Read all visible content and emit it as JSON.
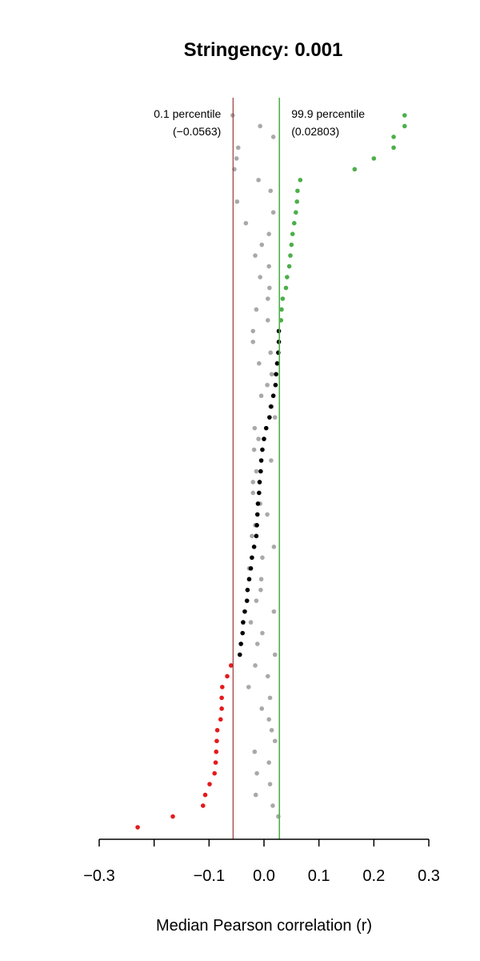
{
  "chart_data": {
    "type": "scatter",
    "title": "Stringency: 0.001",
    "xlabel": "Median Pearson correlation (r)",
    "xlim": [
      -0.3,
      0.3
    ],
    "ylim": [
      0,
      69
    ],
    "x_ticks": [
      -0.3,
      -0.2,
      -0.1,
      0.0,
      0.1,
      0.2,
      0.3
    ],
    "x_tick_labels": [
      "−0.3",
      "",
      "−0.1",
      "0.0",
      "0.1",
      "0.2",
      "0.3"
    ],
    "colors": {
      "high": "#4daf4a",
      "low": "#e41a1c",
      "middle": "#000000",
      "null": "#a9a9a9",
      "low_line": "#9b3b3b",
      "high_line": "#4daf4a"
    },
    "thresholds": {
      "low": {
        "label": "0.1 percentile",
        "value_label": "(−0.0563)",
        "value": -0.0563
      },
      "high": {
        "label": "99.9 percentile",
        "value_label": "(0.02803)",
        "value": 0.02803
      }
    },
    "series": [
      {
        "key": "null",
        "values": [
          {
            "x": -0.057,
            "y": 68
          },
          {
            "x": -0.007,
            "y": 67
          },
          {
            "x": 0.017,
            "y": 66
          },
          {
            "x": -0.047,
            "y": 65
          },
          {
            "x": -0.05,
            "y": 64
          },
          {
            "x": -0.054,
            "y": 63
          },
          {
            "x": -0.01,
            "y": 62
          },
          {
            "x": 0.012,
            "y": 61
          },
          {
            "x": -0.049,
            "y": 60
          },
          {
            "x": 0.017,
            "y": 59
          },
          {
            "x": -0.033,
            "y": 58
          },
          {
            "x": 0.009,
            "y": 57
          },
          {
            "x": -0.004,
            "y": 56
          },
          {
            "x": -0.016,
            "y": 55
          },
          {
            "x": 0.009,
            "y": 54
          },
          {
            "x": -0.007,
            "y": 53
          },
          {
            "x": 0.01,
            "y": 52
          },
          {
            "x": 0.007,
            "y": 51
          },
          {
            "x": -0.014,
            "y": 50
          },
          {
            "x": 0.007,
            "y": 49
          },
          {
            "x": -0.02,
            "y": 48
          },
          {
            "x": -0.02,
            "y": 47
          },
          {
            "x": 0.012,
            "y": 46
          },
          {
            "x": -0.009,
            "y": 45
          },
          {
            "x": 0.014,
            "y": 44
          },
          {
            "x": 0.006,
            "y": 43
          },
          {
            "x": -0.005,
            "y": 42
          },
          {
            "x": 0.012,
            "y": 41
          },
          {
            "x": 0.02,
            "y": 40
          },
          {
            "x": -0.017,
            "y": 39
          },
          {
            "x": -0.01,
            "y": 38
          },
          {
            "x": -0.018,
            "y": 37
          },
          {
            "x": 0.013,
            "y": 36
          },
          {
            "x": -0.014,
            "y": 35
          },
          {
            "x": -0.02,
            "y": 34
          },
          {
            "x": -0.02,
            "y": 33
          },
          {
            "x": -0.007,
            "y": 32
          },
          {
            "x": 0.006,
            "y": 31
          },
          {
            "x": -0.016,
            "y": 30
          },
          {
            "x": -0.022,
            "y": 29
          },
          {
            "x": 0.018,
            "y": 28
          },
          {
            "x": -0.003,
            "y": 27
          },
          {
            "x": -0.027,
            "y": 26
          },
          {
            "x": -0.005,
            "y": 25
          },
          {
            "x": -0.006,
            "y": 24
          },
          {
            "x": -0.014,
            "y": 23
          },
          {
            "x": 0.018,
            "y": 22
          },
          {
            "x": -0.024,
            "y": 21
          },
          {
            "x": -0.003,
            "y": 20
          },
          {
            "x": -0.012,
            "y": 19
          },
          {
            "x": 0.02,
            "y": 18
          },
          {
            "x": -0.016,
            "y": 17
          },
          {
            "x": 0.007,
            "y": 16
          },
          {
            "x": -0.028,
            "y": 15
          },
          {
            "x": 0.011,
            "y": 14
          },
          {
            "x": -0.004,
            "y": 13
          },
          {
            "x": 0.009,
            "y": 12
          },
          {
            "x": 0.014,
            "y": 11
          },
          {
            "x": 0.02,
            "y": 10
          },
          {
            "x": -0.017,
            "y": 9
          },
          {
            "x": 0.009,
            "y": 8
          },
          {
            "x": -0.013,
            "y": 7
          },
          {
            "x": 0.011,
            "y": 6
          },
          {
            "x": -0.015,
            "y": 5
          },
          {
            "x": 0.016,
            "y": 4
          },
          {
            "x": 0.026,
            "y": 3
          }
        ]
      },
      {
        "key": "high",
        "values": [
          {
            "x": 0.256,
            "y": 68
          },
          {
            "x": 0.256,
            "y": 67
          },
          {
            "x": 0.236,
            "y": 66
          },
          {
            "x": 0.236,
            "y": 65
          },
          {
            "x": 0.2,
            "y": 64
          },
          {
            "x": 0.165,
            "y": 63
          },
          {
            "x": 0.066,
            "y": 62
          },
          {
            "x": 0.061,
            "y": 61
          },
          {
            "x": 0.06,
            "y": 60
          },
          {
            "x": 0.058,
            "y": 59
          },
          {
            "x": 0.055,
            "y": 58
          },
          {
            "x": 0.052,
            "y": 57
          },
          {
            "x": 0.05,
            "y": 56
          },
          {
            "x": 0.048,
            "y": 55
          },
          {
            "x": 0.046,
            "y": 54
          },
          {
            "x": 0.042,
            "y": 53
          },
          {
            "x": 0.04,
            "y": 52
          },
          {
            "x": 0.034,
            "y": 51
          },
          {
            "x": 0.032,
            "y": 50
          },
          {
            "x": 0.031,
            "y": 49
          }
        ]
      },
      {
        "key": "middle",
        "values": [
          {
            "x": 0.027,
            "y": 48
          },
          {
            "x": 0.027,
            "y": 47
          },
          {
            "x": 0.026,
            "y": 46
          },
          {
            "x": 0.024,
            "y": 45
          },
          {
            "x": 0.022,
            "y": 44
          },
          {
            "x": 0.021,
            "y": 43
          },
          {
            "x": 0.017,
            "y": 42
          },
          {
            "x": 0.013,
            "y": 41
          },
          {
            "x": 0.01,
            "y": 40
          },
          {
            "x": 0.004,
            "y": 39
          },
          {
            "x": 0.0,
            "y": 38
          },
          {
            "x": -0.003,
            "y": 37
          },
          {
            "x": -0.005,
            "y": 36
          },
          {
            "x": -0.006,
            "y": 35
          },
          {
            "x": -0.008,
            "y": 34
          },
          {
            "x": -0.009,
            "y": 33
          },
          {
            "x": -0.011,
            "y": 32
          },
          {
            "x": -0.012,
            "y": 31
          },
          {
            "x": -0.013,
            "y": 30
          },
          {
            "x": -0.014,
            "y": 29
          },
          {
            "x": -0.018,
            "y": 28
          },
          {
            "x": -0.022,
            "y": 27
          },
          {
            "x": -0.024,
            "y": 26
          },
          {
            "x": -0.027,
            "y": 25
          },
          {
            "x": -0.03,
            "y": 24
          },
          {
            "x": -0.031,
            "y": 23
          },
          {
            "x": -0.035,
            "y": 22
          },
          {
            "x": -0.038,
            "y": 21
          },
          {
            "x": -0.039,
            "y": 20
          },
          {
            "x": -0.042,
            "y": 19
          },
          {
            "x": -0.044,
            "y": 18
          }
        ]
      },
      {
        "key": "low",
        "values": [
          {
            "x": -0.06,
            "y": 17
          },
          {
            "x": -0.067,
            "y": 16
          },
          {
            "x": -0.076,
            "y": 15
          },
          {
            "x": -0.077,
            "y": 14
          },
          {
            "x": -0.077,
            "y": 13
          },
          {
            "x": -0.079,
            "y": 12
          },
          {
            "x": -0.085,
            "y": 11
          },
          {
            "x": -0.086,
            "y": 10
          },
          {
            "x": -0.087,
            "y": 9
          },
          {
            "x": -0.088,
            "y": 8
          },
          {
            "x": -0.09,
            "y": 7
          },
          {
            "x": -0.099,
            "y": 6
          },
          {
            "x": -0.107,
            "y": 5
          },
          {
            "x": -0.111,
            "y": 4
          },
          {
            "x": -0.166,
            "y": 3
          },
          {
            "x": -0.23,
            "y": 2
          }
        ]
      }
    ]
  }
}
